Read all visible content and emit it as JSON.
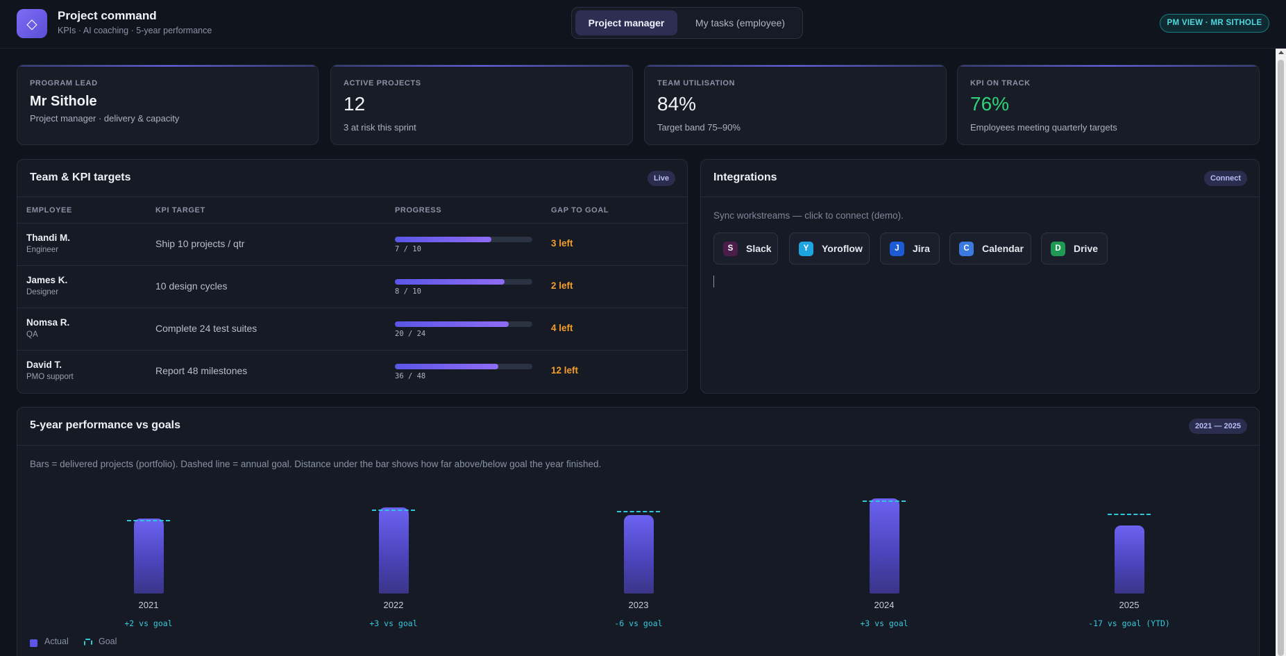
{
  "header": {
    "logo_glyph": "◇",
    "title": "Project command",
    "subtitle": "KPIs · AI coaching · 5-year performance",
    "tabs": [
      {
        "label": "Project manager",
        "active": true
      },
      {
        "label": "My tasks (employee)",
        "active": false
      }
    ],
    "view_badge": "PM VIEW · MR SITHOLE"
  },
  "kpis": [
    {
      "label": "PROGRAM LEAD",
      "value": "Mr Sithole",
      "desc": "Project manager · delivery & capacity"
    },
    {
      "label": "ACTIVE PROJECTS",
      "value": "12",
      "desc": "3 at risk this sprint"
    },
    {
      "label": "TEAM UTILISATION",
      "value": "84%",
      "desc": "Target band 75–90%"
    },
    {
      "label": "KPI ON TRACK",
      "value": "76%",
      "desc": "Employees meeting quarterly targets",
      "color": "#2fd47a"
    }
  ],
  "team": {
    "title": "Team & KPI targets",
    "badge": "Live",
    "columns": [
      "EMPLOYEE",
      "KPI TARGET",
      "PROGRESS",
      "GAP TO GOAL"
    ],
    "rows": [
      {
        "name": "Thandi M.",
        "role": "Engineer",
        "kpi": "Ship 10 projects / qtr",
        "done": 7,
        "target": 10,
        "progress_text": "7 / 10",
        "gap": "3 left"
      },
      {
        "name": "James K.",
        "role": "Designer",
        "kpi": "10 design cycles",
        "done": 8,
        "target": 10,
        "progress_text": "8 / 10",
        "gap": "2 left"
      },
      {
        "name": "Nomsa R.",
        "role": "QA",
        "kpi": "Complete 24 test suites",
        "done": 20,
        "target": 24,
        "progress_text": "20 / 24",
        "gap": "4 left"
      },
      {
        "name": "David T.",
        "role": "PMO support",
        "kpi": "Report 48 milestones",
        "done": 36,
        "target": 48,
        "progress_text": "36 / 48",
        "gap": "12 left"
      }
    ]
  },
  "integrations": {
    "title": "Integrations",
    "badge": "Connect",
    "note": "Sync workstreams — click to connect (demo).",
    "items": [
      {
        "letter": "S",
        "label": "Slack",
        "color": "#4a1d4b"
      },
      {
        "letter": "Y",
        "label": "Yoroflow",
        "color": "#1ea5e0"
      },
      {
        "letter": "J",
        "label": "Jira",
        "color": "#1d5bd6"
      },
      {
        "letter": "C",
        "label": "Calendar",
        "color": "#3b7be0"
      },
      {
        "letter": "D",
        "label": "Drive",
        "color": "#1f9a55"
      }
    ]
  },
  "performance": {
    "title": "5-year performance vs goals",
    "badge": "2021 — 2025",
    "note": "Bars = delivered projects (portfolio). Dashed line = annual goal. Distance under the bar shows how far above/below goal the year finished.",
    "legend": {
      "actual": "Actual",
      "goal": "Goal"
    },
    "vs_labels": [
      "+2 vs goal",
      "+3 vs goal",
      "-6 vs goal",
      "+3 vs goal",
      "-17 vs goal (YTD)"
    ]
  },
  "chart_data": {
    "type": "bar",
    "categories": [
      "2021",
      "2022",
      "2023",
      "2024",
      "2025"
    ],
    "series": [
      {
        "name": "Actual",
        "values": [
          108,
          124,
          113,
          137,
          98
        ]
      },
      {
        "name": "Goal",
        "values": [
          106,
          121,
          119,
          134,
          115
        ]
      }
    ],
    "ylim": [
      0,
      160
    ],
    "legend": "bottom-left",
    "colors": {
      "actual": "#5d55e8",
      "goal": "#2ec8de"
    }
  }
}
